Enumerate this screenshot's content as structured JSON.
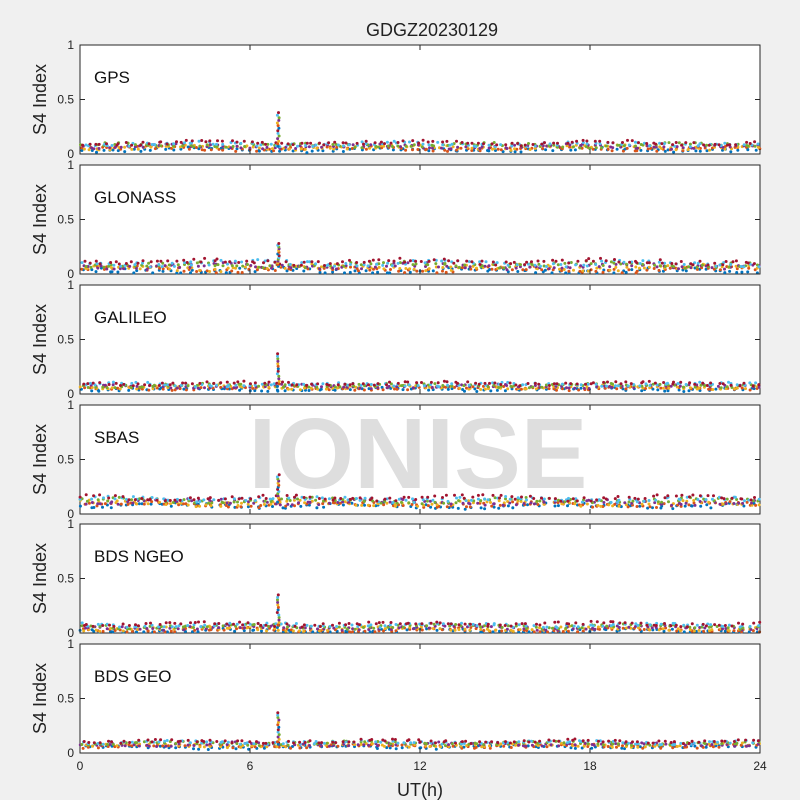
{
  "chart_data": {
    "type": "scatter",
    "title": "GDGZ20230129",
    "watermark": "IONISE",
    "xlabel": "UT(h)",
    "xlim": [
      0,
      24
    ],
    "xticks": [
      "0",
      "6",
      "12",
      "18",
      "24"
    ],
    "ylim": [
      0,
      1
    ],
    "yticks": [
      "0",
      "0.5",
      "1"
    ],
    "grid": false,
    "series_colors": [
      "#0072BD",
      "#D95319",
      "#EDB120",
      "#7E2F8E",
      "#77AC30",
      "#4DBEEE",
      "#A2142F"
    ],
    "panels": [
      {
        "label": "GPS",
        "ylabel": "S4 Index",
        "baseline": 0.07,
        "spread": 0.03,
        "spike": {
          "x": 7.0,
          "peak": 0.38
        }
      },
      {
        "label": "GLONASS",
        "ylabel": "S4 Index",
        "baseline": 0.07,
        "spread": 0.04,
        "spike": {
          "x": 7.0,
          "peak": 0.28
        }
      },
      {
        "label": "GALILEO",
        "ylabel": "S4 Index",
        "baseline": 0.07,
        "spread": 0.025,
        "spike": {
          "x": 7.0,
          "peak": 0.37
        }
      },
      {
        "label": "SBAS",
        "ylabel": "S4 Index",
        "baseline": 0.11,
        "spread": 0.035,
        "spike": {
          "x": 7.0,
          "peak": 0.36
        }
      },
      {
        "label": "BDS NGEO",
        "ylabel": "S4 Index",
        "baseline": 0.05,
        "spread": 0.03,
        "spike": {
          "x": 7.0,
          "peak": 0.35
        }
      },
      {
        "label": "BDS GEO",
        "ylabel": "S4 Index",
        "baseline": 0.08,
        "spread": 0.025,
        "spike": {
          "x": 7.0,
          "peak": 0.37
        }
      }
    ]
  }
}
